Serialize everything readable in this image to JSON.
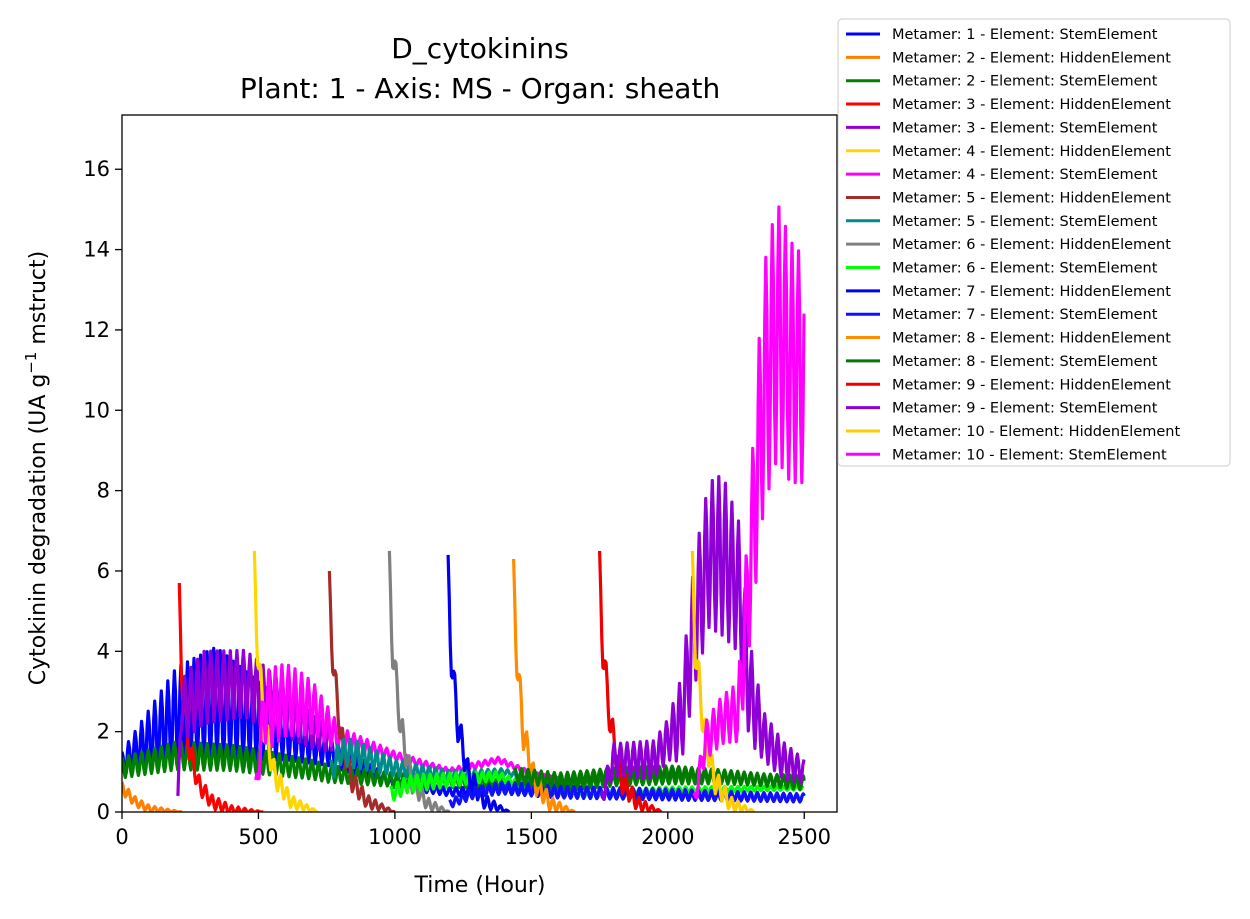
{
  "chart_data": {
    "type": "line",
    "title": "D_cytokinins",
    "subtitle": "Plant: 1 - Axis: MS - Organ: sheath",
    "xlabel": "Time (Hour)",
    "ylabel_main": "Cytokinin degradation (UA g",
    "ylabel_sup": "−1",
    "ylabel_tail": " mstruct)",
    "xlim": [
      0,
      2620
    ],
    "ylim": [
      0,
      17.35
    ],
    "xticks": [
      0,
      500,
      1000,
      1500,
      2000,
      2500
    ],
    "yticks": [
      0,
      2,
      4,
      6,
      8,
      10,
      12,
      14,
      16
    ],
    "grid": false,
    "legend_position": "outside-top-right",
    "series": [
      {
        "name": "Metamer: 1 - Element: StemElement",
        "color": "#0000ff",
        "kind": "osc",
        "start": 0,
        "end": 2500,
        "base_pts": [
          [
            0,
            1.2
          ],
          [
            200,
            2.4
          ],
          [
            340,
            2.7
          ],
          [
            600,
            2.0
          ],
          [
            760,
            1.5
          ],
          [
            1000,
            0.7
          ],
          [
            1200,
            0.5
          ],
          [
            1400,
            0.55
          ],
          [
            1600,
            0.45
          ],
          [
            2000,
            0.4
          ],
          [
            2500,
            0.35
          ]
        ],
        "amp_pts": [
          [
            0,
            0.3
          ],
          [
            200,
            1.2
          ],
          [
            350,
            1.4
          ],
          [
            600,
            0.7
          ],
          [
            760,
            0.35
          ],
          [
            1000,
            0.1
          ],
          [
            1300,
            0.1
          ],
          [
            2500,
            0.1
          ]
        ]
      },
      {
        "name": "Metamer: 2 - Element: HiddenElement",
        "color": "#ff8000",
        "kind": "decay",
        "start": 0,
        "end": 220,
        "base_pts": [
          [
            0,
            0.6
          ],
          [
            50,
            0.25
          ],
          [
            100,
            0.08
          ],
          [
            220,
            0.0
          ]
        ],
        "amp_pts": [
          [
            0,
            0.15
          ],
          [
            220,
            0.0
          ]
        ]
      },
      {
        "name": "Metamer: 2 - Element: StemElement",
        "color": "#008000",
        "kind": "osc",
        "start": 0,
        "end": 2500,
        "base_pts": [
          [
            0,
            1.1
          ],
          [
            200,
            1.4
          ],
          [
            400,
            1.35
          ],
          [
            700,
            1.05
          ],
          [
            760,
            0.95
          ],
          [
            1000,
            0.8
          ],
          [
            1400,
            0.7
          ],
          [
            1600,
            0.65
          ],
          [
            1800,
            0.8
          ],
          [
            2000,
            0.85
          ],
          [
            2200,
            0.85
          ],
          [
            2500,
            0.75
          ]
        ],
        "amp_pts": [
          [
            0,
            0.25
          ],
          [
            200,
            0.35
          ],
          [
            500,
            0.3
          ],
          [
            800,
            0.2
          ],
          [
            1400,
            0.1
          ],
          [
            1800,
            0.15
          ],
          [
            2500,
            0.15
          ]
        ]
      },
      {
        "name": "Metamer: 3 - Element: HiddenElement",
        "color": "#ff0000",
        "kind": "decay",
        "start": 210,
        "end": 520,
        "base_pts": [
          [
            210,
            5.3
          ],
          [
            218,
            3.5
          ],
          [
            240,
            1.8
          ],
          [
            280,
            0.7
          ],
          [
            330,
            0.25
          ],
          [
            400,
            0.05
          ],
          [
            520,
            0.0
          ]
        ],
        "amp_pts": [
          [
            210,
            0.4
          ],
          [
            300,
            0.2
          ],
          [
            520,
            0.0
          ]
        ]
      },
      {
        "name": "Metamer: 3 - Element: StemElement",
        "color": "#9400d3",
        "kind": "osc",
        "start": 205,
        "end": 770,
        "base_pts": [
          [
            205,
            0.2
          ],
          [
            215,
            2.5
          ],
          [
            300,
            3.1
          ],
          [
            450,
            3.2
          ],
          [
            600,
            2.5
          ],
          [
            700,
            2.0
          ],
          [
            770,
            1.8
          ]
        ],
        "amp_pts": [
          [
            205,
            0.2
          ],
          [
            230,
            0.8
          ],
          [
            300,
            0.9
          ],
          [
            500,
            0.8
          ],
          [
            770,
            0.3
          ]
        ]
      },
      {
        "name": "Metamer: 4 - Element: HiddenElement",
        "color": "#ffd700",
        "kind": "decay",
        "start": 485,
        "end": 720,
        "base_pts": [
          [
            485,
            6.0
          ],
          [
            495,
            4.3
          ],
          [
            520,
            2.2
          ],
          [
            560,
            0.9
          ],
          [
            620,
            0.25
          ],
          [
            720,
            0.0
          ]
        ],
        "amp_pts": [
          [
            485,
            0.5
          ],
          [
            600,
            0.2
          ],
          [
            720,
            0.0
          ]
        ]
      },
      {
        "name": "Metamer: 4 - Element: StemElement",
        "color": "#ff00ff",
        "kind": "osc",
        "start": 490,
        "end": 1600,
        "base_pts": [
          [
            490,
            0.5
          ],
          [
            520,
            2.5
          ],
          [
            600,
            2.8
          ],
          [
            700,
            2.6
          ],
          [
            800,
            1.8
          ],
          [
            1000,
            1.4
          ],
          [
            1200,
            1.0
          ],
          [
            1380,
            1.3
          ],
          [
            1500,
            0.95
          ],
          [
            1600,
            0.8
          ]
        ],
        "amp_pts": [
          [
            490,
            0.3
          ],
          [
            540,
            1.0
          ],
          [
            650,
            0.8
          ],
          [
            800,
            0.3
          ],
          [
            1000,
            0.1
          ],
          [
            1600,
            0.05
          ]
        ]
      },
      {
        "name": "Metamer: 5 - Element: HiddenElement",
        "color": "#a52a2a",
        "kind": "decay",
        "start": 760,
        "end": 1000,
        "base_pts": [
          [
            760,
            5.6
          ],
          [
            770,
            4.0
          ],
          [
            800,
            2.0
          ],
          [
            840,
            0.8
          ],
          [
            900,
            0.25
          ],
          [
            1000,
            0.0
          ]
        ],
        "amp_pts": [
          [
            760,
            0.4
          ],
          [
            880,
            0.2
          ],
          [
            1000,
            0.0
          ]
        ]
      },
      {
        "name": "Metamer: 5 - Element: StemElement",
        "color": "#008b8b",
        "kind": "osc",
        "start": 765,
        "end": 1560,
        "base_pts": [
          [
            765,
            1.0
          ],
          [
            800,
            1.5
          ],
          [
            850,
            1.45
          ],
          [
            1000,
            1.1
          ],
          [
            1200,
            0.9
          ],
          [
            1400,
            1.0
          ],
          [
            1560,
            0.7
          ]
        ],
        "amp_pts": [
          [
            765,
            0.3
          ],
          [
            850,
            0.35
          ],
          [
            1000,
            0.2
          ],
          [
            1300,
            0.1
          ],
          [
            1560,
            0.05
          ]
        ]
      },
      {
        "name": "Metamer: 6 - Element: HiddenElement",
        "color": "#808080",
        "kind": "decay",
        "start": 980,
        "end": 1200,
        "base_pts": [
          [
            980,
            6.0
          ],
          [
            990,
            4.2
          ],
          [
            1020,
            2.2
          ],
          [
            1060,
            0.8
          ],
          [
            1120,
            0.2
          ],
          [
            1200,
            0.0
          ]
        ],
        "amp_pts": [
          [
            980,
            0.5
          ],
          [
            1100,
            0.2
          ],
          [
            1200,
            0.0
          ]
        ]
      },
      {
        "name": "Metamer: 6 - Element: StemElement",
        "color": "#00ff00",
        "kind": "osc",
        "start": 985,
        "end": 2500,
        "base_pts": [
          [
            985,
            0.45
          ],
          [
            1050,
            0.7
          ],
          [
            1200,
            0.8
          ],
          [
            1380,
            0.9
          ],
          [
            1500,
            0.55
          ],
          [
            1700,
            0.45
          ],
          [
            2000,
            0.55
          ],
          [
            2500,
            0.6
          ]
        ],
        "amp_pts": [
          [
            985,
            0.2
          ],
          [
            1100,
            0.2
          ],
          [
            1400,
            0.1
          ],
          [
            2500,
            0.05
          ]
        ]
      },
      {
        "name": "Metamer: 7 - Element: HiddenElement",
        "color": "#0000ee",
        "kind": "decay",
        "start": 1195,
        "end": 1420,
        "base_pts": [
          [
            1195,
            5.9
          ],
          [
            1205,
            4.0
          ],
          [
            1230,
            2.2
          ],
          [
            1270,
            0.9
          ],
          [
            1330,
            0.25
          ],
          [
            1420,
            0.0
          ]
        ],
        "amp_pts": [
          [
            1195,
            0.5
          ],
          [
            1320,
            0.2
          ],
          [
            1420,
            0.0
          ]
        ]
      },
      {
        "name": "Metamer: 7 - Element: StemElement",
        "color": "#1010ff",
        "kind": "osc",
        "start": 1200,
        "end": 2500,
        "base_pts": [
          [
            1200,
            0.2
          ],
          [
            1300,
            0.5
          ],
          [
            1400,
            0.6
          ],
          [
            1600,
            0.5
          ],
          [
            2000,
            0.45
          ],
          [
            2500,
            0.35
          ]
        ],
        "amp_pts": [
          [
            1200,
            0.1
          ],
          [
            1400,
            0.15
          ],
          [
            2500,
            0.1
          ]
        ]
      },
      {
        "name": "Metamer: 8 - Element: HiddenElement",
        "color": "#ff8c00",
        "kind": "decay",
        "start": 1435,
        "end": 1660,
        "base_pts": [
          [
            1435,
            5.8
          ],
          [
            1445,
            4.0
          ],
          [
            1470,
            2.0
          ],
          [
            1510,
            0.8
          ],
          [
            1570,
            0.2
          ],
          [
            1660,
            0.0
          ]
        ],
        "amp_pts": [
          [
            1435,
            0.5
          ],
          [
            1560,
            0.2
          ],
          [
            1660,
            0.0
          ]
        ]
      },
      {
        "name": "Metamer: 8 - Element: StemElement",
        "color": "#007a00",
        "kind": "osc",
        "start": 1440,
        "end": 2500,
        "base_pts": [
          [
            1440,
            0.9
          ],
          [
            1600,
            0.8
          ],
          [
            1800,
            0.95
          ],
          [
            2000,
            1.0
          ],
          [
            2200,
            0.9
          ],
          [
            2500,
            0.7
          ]
        ],
        "amp_pts": [
          [
            1440,
            0.2
          ],
          [
            1700,
            0.15
          ],
          [
            2500,
            0.15
          ]
        ]
      },
      {
        "name": "Metamer: 9 - Element: HiddenElement",
        "color": "#ee0000",
        "kind": "decay",
        "start": 1750,
        "end": 1980,
        "base_pts": [
          [
            1750,
            6.0
          ],
          [
            1760,
            4.2
          ],
          [
            1790,
            2.2
          ],
          [
            1830,
            0.8
          ],
          [
            1890,
            0.2
          ],
          [
            1980,
            0.0
          ]
        ],
        "amp_pts": [
          [
            1750,
            0.5
          ],
          [
            1880,
            0.2
          ],
          [
            1980,
            0.0
          ]
        ]
      },
      {
        "name": "Metamer: 9 - Element: StemElement",
        "color": "#8f00d6",
        "kind": "osc",
        "start": 1755,
        "end": 2500,
        "base_pts": [
          [
            1755,
            0.3
          ],
          [
            1800,
            1.3
          ],
          [
            1950,
            1.3
          ],
          [
            2050,
            2.3
          ],
          [
            2100,
            4.8
          ],
          [
            2150,
            6.4
          ],
          [
            2200,
            6.4
          ],
          [
            2260,
            5.6
          ],
          [
            2300,
            3.0
          ],
          [
            2350,
            1.9
          ],
          [
            2420,
            1.3
          ],
          [
            2500,
            1.0
          ]
        ],
        "amp_pts": [
          [
            1755,
            0.2
          ],
          [
            1800,
            0.4
          ],
          [
            2000,
            0.5
          ],
          [
            2100,
            1.6
          ],
          [
            2200,
            2.0
          ],
          [
            2280,
            1.5
          ],
          [
            2350,
            0.6
          ],
          [
            2500,
            0.3
          ]
        ]
      },
      {
        "name": "Metamer: 10 - Element: HiddenElement",
        "color": "#ffcc00",
        "kind": "decay",
        "start": 2090,
        "end": 2320,
        "base_pts": [
          [
            2090,
            6.0
          ],
          [
            2100,
            4.2
          ],
          [
            2130,
            2.2
          ],
          [
            2170,
            0.8
          ],
          [
            2230,
            0.2
          ],
          [
            2320,
            0.0
          ]
        ],
        "amp_pts": [
          [
            2090,
            0.5
          ],
          [
            2220,
            0.2
          ],
          [
            2320,
            0.0
          ]
        ]
      },
      {
        "name": "Metamer: 10 - Element: StemElement",
        "color": "#ff00ff",
        "kind": "osc",
        "start": 2095,
        "end": 2500,
        "base_pts": [
          [
            2095,
            0.2
          ],
          [
            2140,
            1.8
          ],
          [
            2200,
            2.3
          ],
          [
            2260,
            2.5
          ],
          [
            2300,
            6.0
          ],
          [
            2350,
            10.5
          ],
          [
            2400,
            12.0
          ],
          [
            2450,
            11.2
          ],
          [
            2500,
            11.0
          ]
        ],
        "amp_pts": [
          [
            2095,
            0.2
          ],
          [
            2150,
            0.5
          ],
          [
            2250,
            0.7
          ],
          [
            2300,
            1.8
          ],
          [
            2350,
            3.0
          ],
          [
            2400,
            3.2
          ],
          [
            2500,
            2.8
          ]
        ]
      }
    ]
  }
}
